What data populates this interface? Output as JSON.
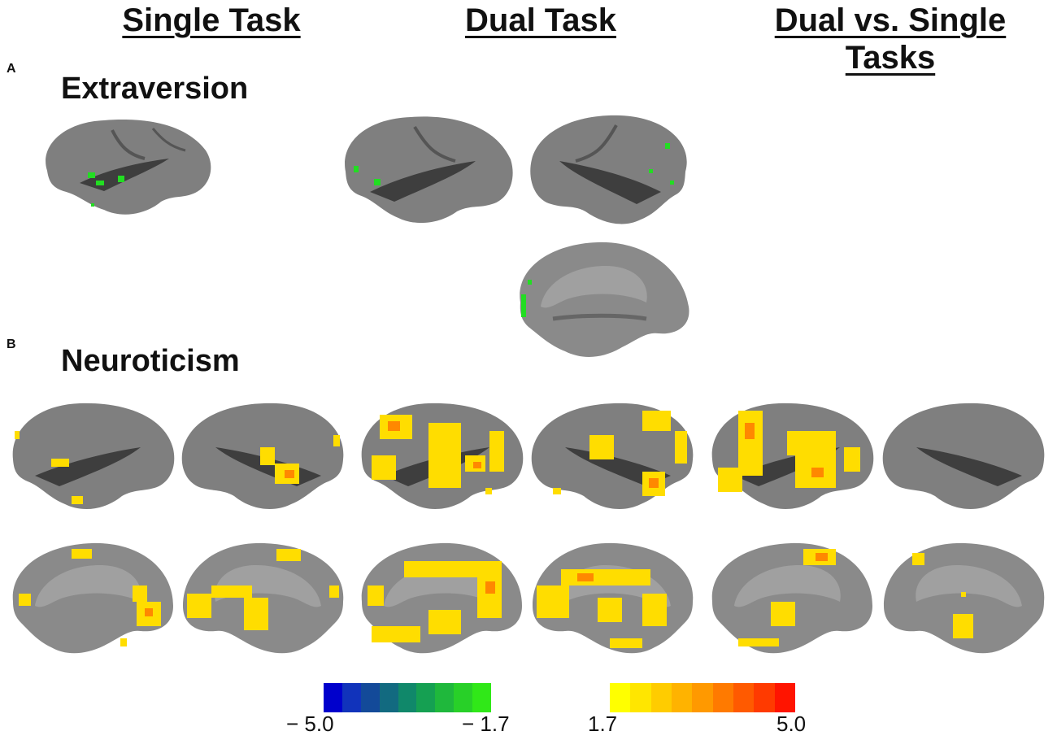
{
  "column_headers": {
    "single": "Single Task",
    "dual": "Dual Task",
    "dual_vs_single_line1": "Dual vs. Single",
    "dual_vs_single_line2": "Tasks"
  },
  "panels": {
    "a": {
      "letter": "A",
      "title": "Extraversion"
    },
    "b": {
      "letter": "B",
      "title": "Neuroticism"
    }
  },
  "colorbars": {
    "negative": {
      "min_label": "− 5.0",
      "max_label": "− 1.7",
      "colors": [
        "#0000cc",
        "#1133bb",
        "#134a99",
        "#126a80",
        "#10886a",
        "#15a052",
        "#1fb83c",
        "#28d028",
        "#30e818"
      ]
    },
    "positive": {
      "min_label": "1.7",
      "max_label": "5.0",
      "colors": [
        "#ffff00",
        "#ffe600",
        "#ffcc00",
        "#ffb300",
        "#ff9900",
        "#ff7a00",
        "#ff5a00",
        "#ff3a00",
        "#ff1400"
      ]
    }
  },
  "colors": {
    "brain_surface": "#7f7f7f",
    "brain_sulcus": "#5a5a5a",
    "brain_medial_wall": "#9a9a9a",
    "activation_negative": "#22dd22",
    "activation_positive": "#ffdd00",
    "activation_peak": "#ff8800"
  }
}
